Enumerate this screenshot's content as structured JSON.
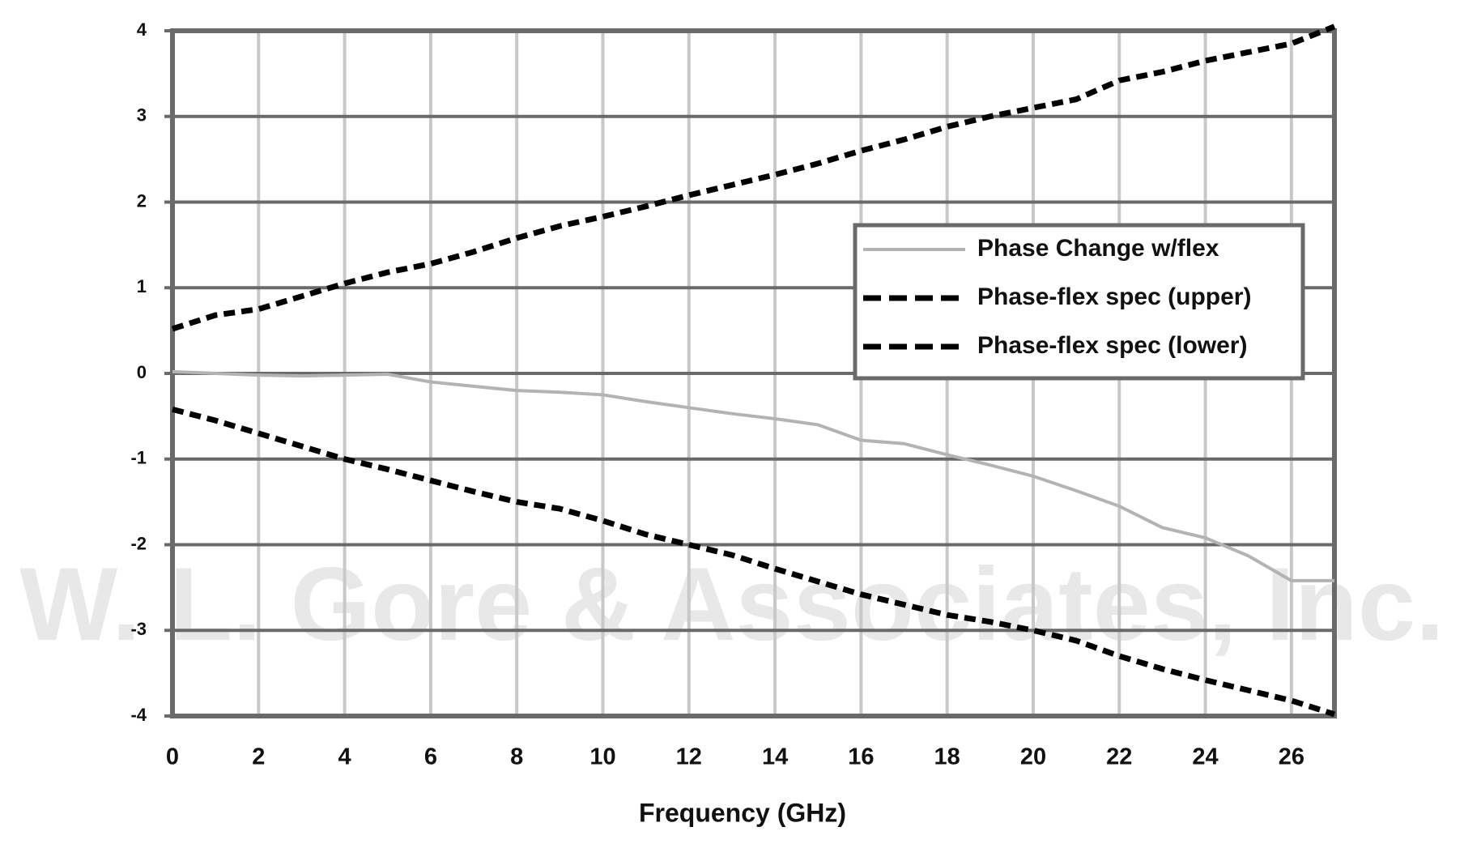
{
  "chart_data": {
    "type": "line",
    "xlabel": "Frequency (GHz)",
    "watermark": "W. L. Gore & Associates, Inc.",
    "x": [
      0,
      1,
      2,
      3,
      4,
      5,
      6,
      7,
      8,
      9,
      10,
      11,
      12,
      13,
      14,
      15,
      16,
      17,
      18,
      19,
      20,
      21,
      22,
      23,
      24,
      25,
      26,
      27
    ],
    "series": [
      {
        "name": "Phase Change w/flex",
        "color": "#b3b3b3",
        "dashed": false,
        "values": [
          0.02,
          0,
          -0.02,
          -0.03,
          -0.02,
          -0.01,
          -0.1,
          -0.15,
          -0.2,
          -0.22,
          -0.25,
          -0.33,
          -0.4,
          -0.47,
          -0.53,
          -0.6,
          -0.78,
          -0.82,
          -0.95,
          -1.07,
          -1.2,
          -1.37,
          -1.55,
          -1.8,
          -1.92,
          -2.13,
          -2.42,
          -2.42
        ]
      },
      {
        "name": "Phase-flex spec (upper)",
        "color": "#000000",
        "dashed": true,
        "values": [
          0.52,
          0.68,
          0.75,
          0.9,
          1.05,
          1.18,
          1.28,
          1.42,
          1.58,
          1.72,
          1.83,
          1.95,
          2.08,
          2.2,
          2.32,
          2.45,
          2.6,
          2.73,
          2.88,
          3.0,
          3.1,
          3.2,
          3.42,
          3.52,
          3.65,
          3.75,
          3.85,
          4.05
        ]
      },
      {
        "name": "Phase-flex spec (lower)",
        "color": "#000000",
        "dashed": true,
        "values": [
          -0.42,
          -0.55,
          -0.7,
          -0.85,
          -1.0,
          -1.12,
          -1.25,
          -1.38,
          -1.5,
          -1.58,
          -1.72,
          -1.88,
          -2.0,
          -2.12,
          -2.28,
          -2.43,
          -2.58,
          -2.7,
          -2.82,
          -2.9,
          -3.0,
          -3.12,
          -3.3,
          -3.45,
          -3.58,
          -3.7,
          -3.82,
          -3.98
        ]
      }
    ],
    "xlim": [
      0,
      27
    ],
    "xticks": [
      0,
      2,
      4,
      6,
      8,
      10,
      12,
      14,
      16,
      18,
      20,
      22,
      24,
      26
    ],
    "ylim": [
      -4,
      4
    ],
    "yticks": [
      -4,
      -3,
      -2,
      -1,
      0,
      1,
      2,
      3,
      4
    ],
    "grid": true,
    "legend": "upper right"
  }
}
